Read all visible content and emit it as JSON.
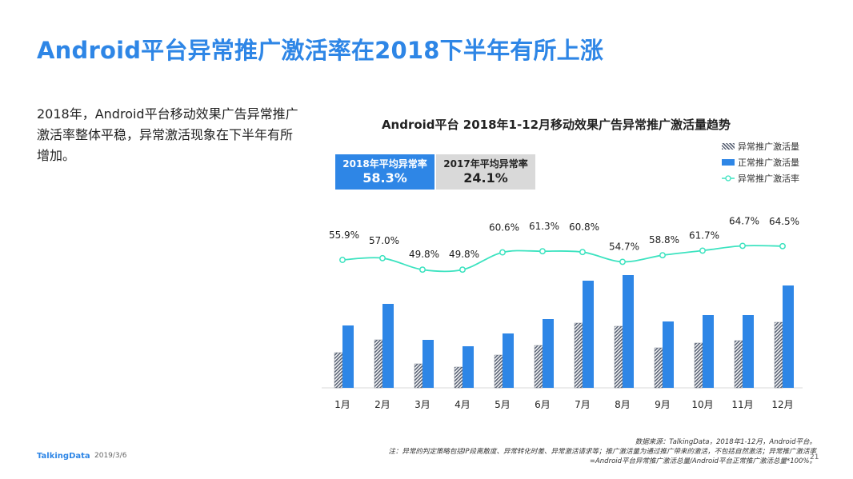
{
  "page": {
    "title": "Android平台异常推广激活率在2018下半年有所上涨",
    "summary": "2018年，Android平台移动效果广告异常推广激活率整体平稳，异常激活现象在下半年有所增加。",
    "page_number": "21"
  },
  "averages": {
    "y2018": {
      "label": "2018年平均异常率",
      "value": "58.3%"
    },
    "y2017": {
      "label": "2017年平均异常率",
      "value": "24.1%"
    }
  },
  "footer": {
    "logo": "TalkingData",
    "date": "2019/3/6",
    "source": "数据来源：TalkingData，2018年1-12月，Android平台。",
    "note1": "注：异常的判定策略包括IP段离散度、异常转化时差、异常激活请求等；推广激活量为通过推广带来的激活，不包括自然激活；异常推广激活率",
    "note2": "=Android平台异常推广激活总量/Android平台正常推广激活总量*100%。"
  },
  "colors": {
    "title": "#2e86e6",
    "normal_bar": "#2e86e6",
    "abnormal_bar": "#5b6476",
    "rate_line": "#3de3c0",
    "avg_2017_bg": "#d9d9d9"
  },
  "chart_data": {
    "type": "bar",
    "title": "Android平台  2018年1-12月移动效果广告异常推广激活量趋势",
    "categories": [
      "1月",
      "2月",
      "3月",
      "4月",
      "5月",
      "6月",
      "7月",
      "8月",
      "9月",
      "10月",
      "11月",
      "12月"
    ],
    "series": [
      {
        "name": "异常推广激活量",
        "type": "bar",
        "pattern": "hatched",
        "values": [
          44,
          60,
          30,
          26,
          41,
          53,
          81,
          77,
          50,
          56,
          59,
          82
        ]
      },
      {
        "name": "正常推广激活量",
        "type": "bar",
        "values": [
          78,
          105,
          60,
          52,
          68,
          86,
          134,
          141,
          83,
          91,
          91,
          128
        ]
      },
      {
        "name": "异常推广激活率",
        "type": "line",
        "axis": "secondary",
        "values": [
          55.9,
          57.0,
          49.8,
          49.8,
          60.6,
          61.3,
          60.8,
          54.7,
          58.8,
          61.7,
          64.7,
          64.5
        ],
        "labels": [
          "55.9%",
          "57.0%",
          "49.8%",
          "49.8%",
          "60.6%",
          "61.3%",
          "60.8%",
          "54.7%",
          "58.8%",
          "61.7%",
          "64.7%",
          "64.5%"
        ]
      }
    ],
    "legend_position": "top-right",
    "grid": false,
    "y_axis_visible": false
  }
}
